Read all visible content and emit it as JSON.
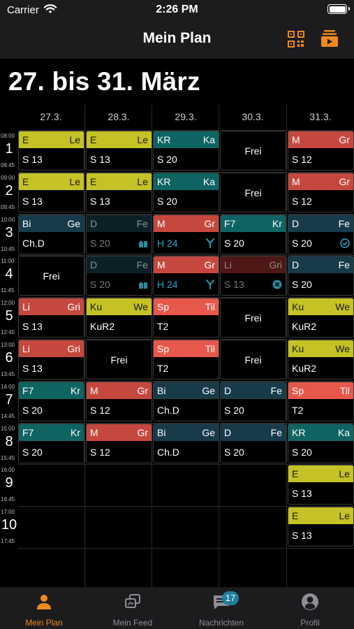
{
  "status": {
    "carrier": "Carrier",
    "time": "2:26 PM"
  },
  "nav": {
    "title": "Mein Plan"
  },
  "week_title": "27. bis 31. März",
  "days": [
    "27.3.",
    "28.3.",
    "29.3.",
    "30.3.",
    "31.3."
  ],
  "periods": [
    {
      "num": "1",
      "start": "08:00",
      "end": "08:45"
    },
    {
      "num": "2",
      "start": "09:00",
      "end": "09:45"
    },
    {
      "num": "3",
      "start": "10:00",
      "end": "10:45"
    },
    {
      "num": "4",
      "start": "11:00",
      "end": "11:45"
    },
    {
      "num": "5",
      "start": "12:00",
      "end": "12:45"
    },
    {
      "num": "6",
      "start": "13:00",
      "end": "13:45"
    },
    {
      "num": "7",
      "start": "14:00",
      "end": "14:45"
    },
    {
      "num": "8",
      "start": "15:00",
      "end": "15:45"
    },
    {
      "num": "9",
      "start": "16:00",
      "end": "16:45"
    },
    {
      "num": "10",
      "start": "17:00",
      "end": "17:45"
    }
  ],
  "free_label": "Frei",
  "schedule": [
    [
      {
        "s": "E",
        "t": "Le",
        "r": "S 13",
        "c": "yellow"
      },
      {
        "s": "E",
        "t": "Le",
        "r": "S 13",
        "c": "yellow"
      },
      {
        "s": "Bi",
        "t": "Ge",
        "r": "Ch.D",
        "c": "navy"
      },
      {
        "free": true
      },
      {
        "s": "Li",
        "t": "Gri",
        "r": "S 13",
        "c": "red"
      },
      {
        "s": "Li",
        "t": "Gri",
        "r": "S 13",
        "c": "red"
      },
      {
        "s": "F7",
        "t": "Kr",
        "r": "S 20",
        "c": "teal"
      },
      {
        "s": "F7",
        "t": "Kr",
        "r": "S 20",
        "c": "teal"
      },
      null,
      null
    ],
    [
      {
        "s": "E",
        "t": "Le",
        "r": "S 13",
        "c": "yellow"
      },
      {
        "s": "E",
        "t": "Le",
        "r": "S 13",
        "c": "yellow"
      },
      {
        "s": "D",
        "t": "Fe",
        "r": "S 20",
        "c": "navy",
        "dim": true,
        "icon": "room-change"
      },
      {
        "s": "D",
        "t": "Fe",
        "r": "S 20",
        "c": "navy",
        "dim": true,
        "icon": "room-change"
      },
      {
        "s": "Ku",
        "t": "We",
        "r": "KuR2",
        "c": "yellow"
      },
      {
        "free": true
      },
      {
        "s": "M",
        "t": "Gr",
        "r": "S 12",
        "c": "red"
      },
      {
        "s": "M",
        "t": "Gr",
        "r": "S 12",
        "c": "red"
      },
      null,
      null
    ],
    [
      {
        "s": "KR",
        "t": "Ka",
        "r": "S 20",
        "c": "teal"
      },
      {
        "s": "KR",
        "t": "Ka",
        "r": "S 20",
        "c": "teal"
      },
      {
        "s": "M",
        "t": "Gr",
        "r": "H 24",
        "c": "red",
        "alt": true,
        "icon": "split"
      },
      {
        "s": "M",
        "t": "Gr",
        "r": "H 24",
        "c": "red",
        "alt": true,
        "icon": "split"
      },
      {
        "s": "Sp",
        "t": "Til",
        "r": "T2",
        "c": "coral"
      },
      {
        "s": "Sp",
        "t": "Til",
        "r": "T2",
        "c": "coral"
      },
      {
        "s": "Bi",
        "t": "Ge",
        "r": "Ch.D",
        "c": "navy"
      },
      {
        "s": "Bi",
        "t": "Ge",
        "r": "Ch.D",
        "c": "navy"
      },
      null,
      null
    ],
    [
      {
        "free": true
      },
      {
        "free": true
      },
      {
        "s": "F7",
        "t": "Kr",
        "r": "S 20",
        "c": "teal"
      },
      {
        "s": "Li",
        "t": "Gri",
        "r": "S 13",
        "c": "darkred",
        "dim": true,
        "icon": "cancel"
      },
      {
        "free": true
      },
      {
        "free": true
      },
      {
        "s": "D",
        "t": "Fe",
        "r": "S 20",
        "c": "navy"
      },
      {
        "s": "D",
        "t": "Fe",
        "r": "S 20",
        "c": "navy"
      },
      null,
      null
    ],
    [
      {
        "s": "M",
        "t": "Gr",
        "r": "S 12",
        "c": "red"
      },
      {
        "s": "M",
        "t": "Gr",
        "r": "S 12",
        "c": "red"
      },
      {
        "s": "D",
        "t": "Fe",
        "r": "S 20",
        "c": "navy",
        "icon": "check"
      },
      {
        "s": "D",
        "t": "Fe",
        "r": "S 20",
        "c": "navy"
      },
      {
        "s": "Ku",
        "t": "We",
        "r": "KuR2",
        "c": "yellow"
      },
      {
        "s": "Ku",
        "t": "We",
        "r": "KuR2",
        "c": "yellow"
      },
      {
        "s": "Sp",
        "t": "Til",
        "r": "T2",
        "c": "coral"
      },
      {
        "s": "KR",
        "t": "Ka",
        "r": "S 20",
        "c": "teal"
      },
      {
        "s": "E",
        "t": "Le",
        "r": "S 13",
        "c": "yellow"
      },
      {
        "s": "E",
        "t": "Le",
        "r": "S 13",
        "c": "yellow"
      }
    ]
  ],
  "tabs": [
    {
      "label": "Mein Plan",
      "icon": "person-icon",
      "active": true
    },
    {
      "label": "Mein Feed",
      "icon": "feed-icon"
    },
    {
      "label": "Nachrichten",
      "icon": "messages-icon",
      "badge": "17"
    },
    {
      "label": "Profil",
      "icon": "profile-icon"
    }
  ],
  "colors": {
    "accent": "#f08a1c",
    "yellow": "#c5c225",
    "teal": "#0e6461",
    "red": "#c5483e",
    "coral": "#e6584b",
    "navy": "#173b49",
    "darkred": "#8c2d27",
    "badge": "#1f7f9e"
  }
}
